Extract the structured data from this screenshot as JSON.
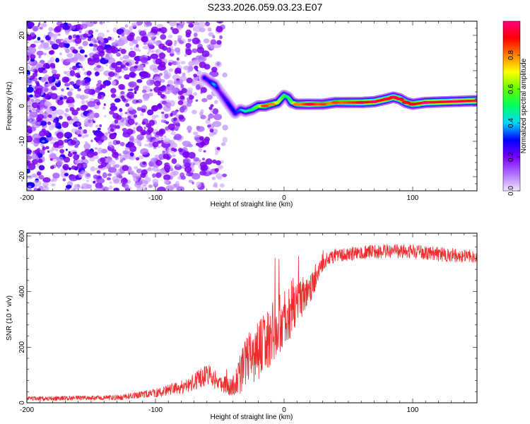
{
  "title": "S233.2026.059.03.23.E07",
  "chart_data": [
    {
      "type": "heatmap",
      "title": "S233.2026.059.03.23.E07",
      "xlabel": "Height of straight line (km)",
      "ylabel": "Frequency (Hz)",
      "xlim": [
        -200,
        150
      ],
      "ylim": [
        -24,
        24
      ],
      "xticks": [
        -200,
        -100,
        0,
        100
      ],
      "yticks": [
        -20,
        -10,
        0,
        10,
        20
      ],
      "colorbar": {
        "label": "Normalized spectral amplitude",
        "range": [
          0,
          1
        ],
        "ticks": [
          "0.0",
          "0.2",
          "0.4",
          "0.6",
          "0.8"
        ],
        "colors": [
          "#f2e6ff",
          "#b070ff",
          "#7a00ff",
          "#0000ff",
          "#00d8ff",
          "#00ff60",
          "#60ff00",
          "#ffff00",
          "#ff8000",
          "#ff0000",
          "#ff0080"
        ]
      },
      "ridge": {
        "x": [
          -62,
          -58,
          -54,
          -50,
          -46,
          -42,
          -38,
          -34,
          -30,
          -25,
          -20,
          -15,
          -10,
          -5,
          0,
          3,
          6,
          10,
          20,
          30,
          40,
          60,
          70,
          80,
          85,
          90,
          95,
          100,
          110,
          150
        ],
        "y": [
          8,
          7,
          6,
          4,
          2,
          0,
          -2,
          -1,
          -1.5,
          -1,
          0,
          0,
          0.5,
          1,
          3,
          2.5,
          1,
          0.5,
          0.5,
          0.5,
          1,
          1,
          1.2,
          2,
          2.5,
          2,
          1,
          0.5,
          1,
          1.5
        ],
        "amplitude": [
          0.3,
          0.25,
          0.4,
          0.2,
          0.25,
          0.3,
          0.3,
          0.35,
          0.45,
          0.5,
          0.6,
          0.8,
          0.75,
          0.7,
          0.55,
          0.5,
          0.6,
          0.75,
          0.9,
          0.8,
          0.8,
          0.9,
          0.95,
          0.9,
          0.9,
          0.9,
          0.85,
          0.85,
          0.95,
          0.95
        ]
      },
      "noise_region": {
        "x_from": -200,
        "x_to": -60,
        "amplitude": [
          0.05,
          0.25
        ]
      }
    },
    {
      "type": "line",
      "xlabel": "Height of straight line (km)",
      "ylabel": "SNR (10 * v/v)",
      "xlim": [
        -200,
        150
      ],
      "ylim": [
        0,
        610
      ],
      "xticks": [
        -200,
        -100,
        0,
        100
      ],
      "yticks": [
        0,
        200,
        400,
        600
      ],
      "series": [
        {
          "name": "SNR",
          "color": "#ef2c2c",
          "x": [
            -200,
            -180,
            -160,
            -140,
            -125,
            -115,
            -100,
            -90,
            -80,
            -70,
            -60,
            -50,
            -40,
            -35,
            -30,
            -25,
            -20,
            -15,
            -10,
            -5,
            0,
            5,
            10,
            15,
            20,
            25,
            30,
            35,
            40,
            50,
            60,
            80,
            100,
            120,
            150
          ],
          "y": [
            15,
            15,
            18,
            18,
            20,
            28,
            35,
            45,
            55,
            75,
            105,
            70,
            60,
            90,
            150,
            170,
            190,
            215,
            250,
            275,
            300,
            325,
            355,
            380,
            405,
            450,
            500,
            520,
            530,
            535,
            540,
            545,
            545,
            535,
            525
          ],
          "noise_amplitude": [
            8,
            8,
            8,
            8,
            10,
            12,
            15,
            20,
            25,
            30,
            40,
            30,
            40,
            70,
            90,
            100,
            110,
            110,
            110,
            110,
            100,
            90,
            80,
            60,
            50,
            40,
            30,
            25,
            25,
            25,
            25,
            25,
            25,
            25,
            25
          ]
        }
      ]
    }
  ]
}
